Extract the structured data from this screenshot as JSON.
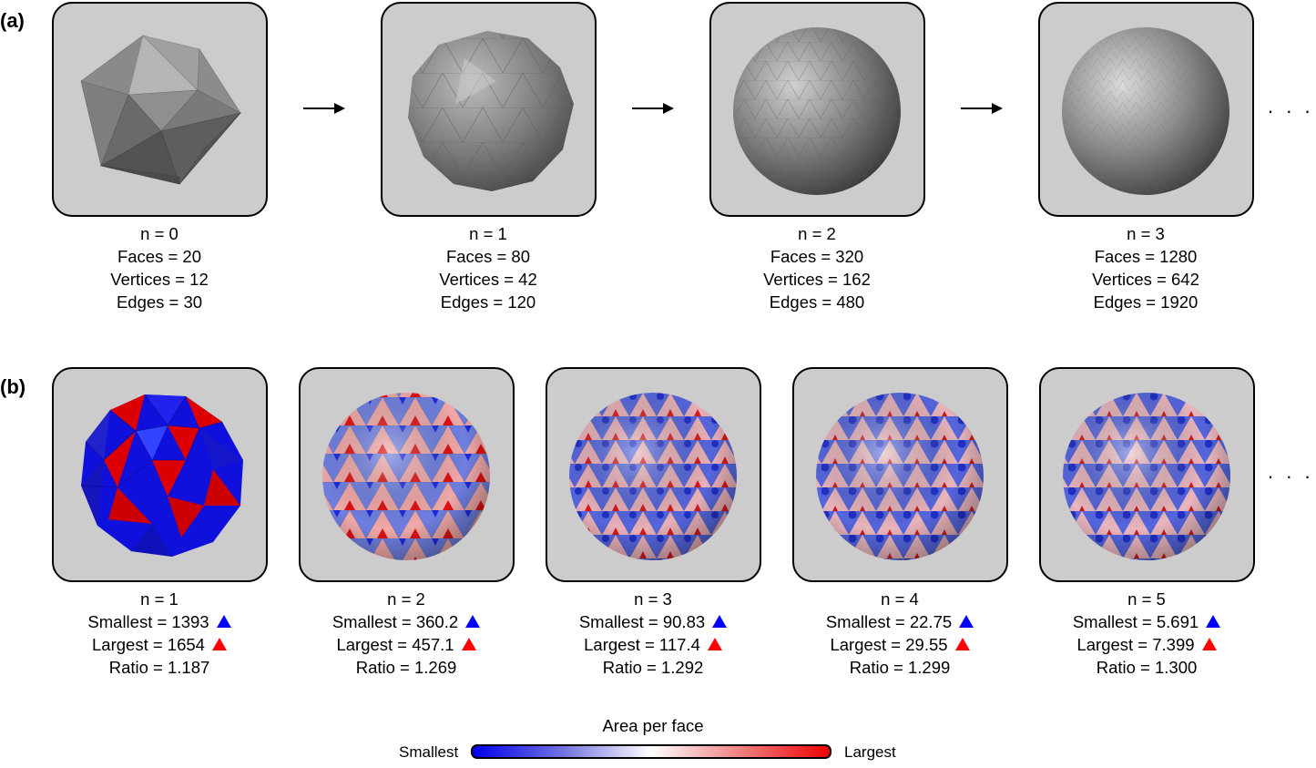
{
  "panel_a": {
    "label": "(a)",
    "stages": [
      {
        "n": "n = 0",
        "faces": "Faces = 20",
        "vertices": "Vertices = 12",
        "edges": "Edges = 30"
      },
      {
        "n": "n = 1",
        "faces": "Faces = 80",
        "vertices": "Vertices = 42",
        "edges": "Edges = 120"
      },
      {
        "n": "n = 2",
        "faces": "Faces = 320",
        "vertices": "Vertices = 162",
        "edges": "Edges = 480"
      },
      {
        "n": "n = 3",
        "faces": "Faces = 1280",
        "vertices": "Vertices = 642",
        "edges": "Edges = 1920"
      }
    ],
    "ellipsis": ". . ."
  },
  "panel_b": {
    "label": "(b)",
    "stages": [
      {
        "n": "n = 1",
        "smallest": "Smallest = 1393",
        "largest": "Largest = 1654",
        "ratio": "Ratio = 1.187"
      },
      {
        "n": "n = 2",
        "smallest": "Smallest = 360.2",
        "largest": "Largest = 457.1",
        "ratio": "Ratio = 1.269"
      },
      {
        "n": "n = 3",
        "smallest": "Smallest = 90.83",
        "largest": "Largest = 117.4",
        "ratio": "Ratio = 1.292"
      },
      {
        "n": "n = 4",
        "smallest": "Smallest = 22.75",
        "largest": "Largest = 29.55",
        "ratio": "Ratio = 1.299"
      },
      {
        "n": "n = 5",
        "smallest": "Smallest = 5.691",
        "largest": "Largest = 7.399",
        "ratio": "Ratio = 1.300"
      }
    ],
    "ellipsis": ". . ."
  },
  "colorbar": {
    "title": "Area per face",
    "min_label": "Smallest",
    "max_label": "Largest",
    "colors": {
      "low": "#0000ee",
      "mid": "#ffffff",
      "high": "#ee0000"
    }
  }
}
